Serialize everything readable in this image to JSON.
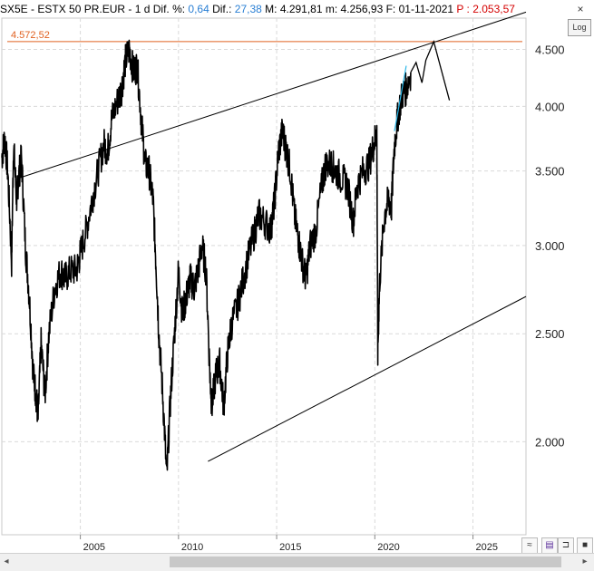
{
  "header": {
    "symbol": "SX5E - ESTX 50 PR.EUR - ",
    "period": " 1 d ",
    "dif_pct_label": "Dif. %: ",
    "dif_pct_value": "0,64",
    "dif_label": " Dif.: ",
    "dif_value": "27,38",
    "max_label": " M: ",
    "max_value": "4.291,81",
    "min_label": " m: ",
    "min_value": "4.256,93",
    "date_label": " F: ",
    "date_value": "01-11-2021",
    "p_label": "  P : ",
    "p_value": "2.053,57",
    "close_icon": "×"
  },
  "log_button": "Log",
  "hline_label": "4.572,52",
  "colors": {
    "price": "#000000",
    "hline": "#e06020",
    "hline_label": "#e06020",
    "cyan": "#29b6e8",
    "grid": "#d9d9d9"
  },
  "toolbar": {
    "zoom_icon": "≈",
    "save_icon": "▤",
    "pin_icon": "⊐",
    "color_icon": "■"
  },
  "scroll": {
    "left_icon": "◂",
    "right_icon": "▸"
  },
  "chart_data": {
    "type": "line",
    "y_scale": "log",
    "ylim": [
      1650,
      4800
    ],
    "y_ticks": [
      2000,
      2500,
      3000,
      3500,
      4000,
      4500
    ],
    "y_tick_labels": [
      "2.000",
      "2.500",
      "3.000",
      "3.500",
      "4.000",
      "4.500"
    ],
    "x_ticks": [
      "2005",
      "2010",
      "2015",
      "2020",
      "2025"
    ],
    "xlim": [
      2001.0,
      2027.7
    ],
    "grid": true,
    "series": [
      {
        "values_x": [
          2001.0,
          2001.15,
          2001.3,
          2001.5,
          2001.6,
          2001.75,
          2001.85,
          2002.0,
          2002.2,
          2002.4,
          2002.6,
          2002.75,
          2002.85,
          2003.0,
          2003.2,
          2003.4,
          2003.7,
          2004.0,
          2004.2,
          2004.5,
          2004.8,
          2005.0,
          2005.3,
          2005.6,
          2005.9,
          2006.2,
          2006.4,
          2006.6,
          2006.9,
          2007.1,
          2007.3,
          2007.5,
          2007.7,
          2007.9,
          2008.1,
          2008.3,
          2008.5,
          2008.7,
          2008.85,
          2009.0,
          2009.2,
          2009.4,
          2009.6,
          2009.8,
          2010.0,
          2010.2,
          2010.4,
          2010.6,
          2010.8,
          2011.0,
          2011.2,
          2011.4,
          2011.6,
          2011.7,
          2011.9,
          2012.1,
          2012.3,
          2012.5,
          2012.7,
          2013.0,
          2013.3,
          2013.6,
          2013.9,
          2014.1,
          2014.4,
          2014.7,
          2014.9,
          2015.1,
          2015.3,
          2015.5,
          2015.7,
          2015.9,
          2016.1,
          2016.3,
          2016.5,
          2016.7,
          2017.0,
          2017.3,
          2017.5,
          2017.8,
          2018.0,
          2018.3,
          2018.6,
          2018.9,
          2019.1,
          2019.4,
          2019.7,
          2019.95,
          2020.1,
          2020.15,
          2020.25,
          2020.5,
          2020.7,
          2020.85,
          2021.0,
          2021.2,
          2021.4,
          2021.6,
          2021.83
        ],
        "values_y": [
          3600,
          3750,
          3500,
          2900,
          3700,
          3300,
          3450,
          3600,
          3000,
          2700,
          2300,
          2200,
          2100,
          2450,
          2200,
          2500,
          2750,
          2850,
          2800,
          2850,
          2850,
          2950,
          3100,
          3300,
          3500,
          3700,
          3650,
          3900,
          4050,
          4150,
          4400,
          4500,
          4300,
          4350,
          3900,
          3550,
          3500,
          3300,
          2900,
          2500,
          2200,
          1850,
          2200,
          2500,
          2850,
          2600,
          2700,
          2800,
          2750,
          2850,
          3000,
          2850,
          2300,
          2150,
          2300,
          2350,
          2150,
          2400,
          2550,
          2650,
          2800,
          2950,
          3100,
          3200,
          3150,
          3100,
          3300,
          3650,
          3800,
          3650,
          3500,
          3200,
          3050,
          2900,
          2800,
          3000,
          3100,
          3400,
          3550,
          3550,
          3500,
          3450,
          3400,
          3150,
          3400,
          3500,
          3550,
          3700,
          3800,
          2400,
          2800,
          3200,
          3300,
          3250,
          3700,
          3950,
          4100,
          4150,
          4292
        ]
      }
    ],
    "annotations": {
      "horizontal_line_value": 4572.52,
      "channel_upper": [
        [
          2001.9,
          3450
        ],
        [
          2027.7,
          4860
        ]
      ],
      "channel_lower": [
        [
          2011.5,
          1920
        ],
        [
          2027.7,
          2700
        ]
      ],
      "projection": [
        [
          2021.83,
          4292
        ],
        [
          2022.1,
          4380
        ],
        [
          2022.4,
          4200
        ],
        [
          2022.6,
          4400
        ],
        [
          2023.0,
          4572
        ],
        [
          2023.8,
          4050
        ]
      ]
    }
  }
}
